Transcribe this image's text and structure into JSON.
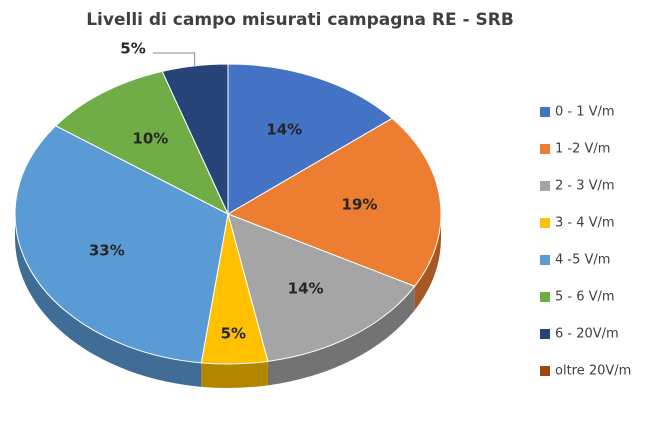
{
  "chart_data": {
    "type": "pie3d",
    "title": "Livelli di campo misurati  campagna RE -  SRB",
    "categories": [
      "0 - 1 V/m",
      "1 -2 V/m",
      "2 - 3 V/m",
      "3 - 4 V/m",
      "4 -5 V/m",
      "5 - 6 V/m",
      "6 - 20V/m",
      "oltre 20V/m"
    ],
    "values": [
      14,
      19,
      14,
      5,
      33,
      10,
      5,
      0
    ],
    "value_labels": [
      "14%",
      "19%",
      "14%",
      "5%",
      "33%",
      "10%",
      "5%",
      null
    ],
    "colors": [
      "#4472c4",
      "#ed7d31",
      "#a5a5a5",
      "#ffc000",
      "#5b9bd5",
      "#70ad47",
      "#264478",
      "#9e480e"
    ],
    "legend": "right"
  }
}
